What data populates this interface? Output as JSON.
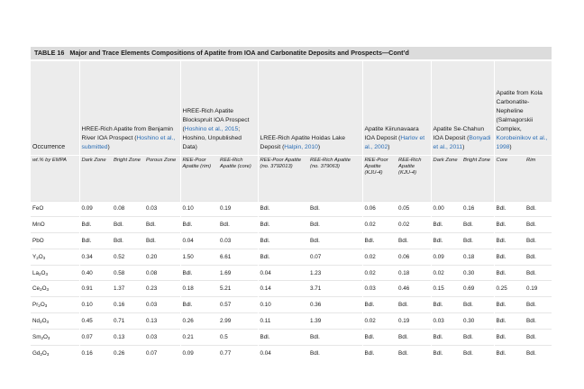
{
  "caption": {
    "label": "TABLE 16",
    "text": "Major and Trace Elements Compositions of Apatite from IOA and Carbonatite Deposits and Prospects—Cont’d"
  },
  "header": {
    "occurrence": "Occurrence",
    "groups": [
      {
        "title": "HREE-Rich Apatite from Benjamin River IOA Prospect (",
        "citation": "Hoshino et al., submitted",
        "suffix": ")"
      },
      {
        "title": "HREE-Rich Apatite Blockspruit IOA Prospect (",
        "citation": "Hoshino et al., 2015",
        "suffix": "; Hoshino, Unpublished Data)"
      },
      {
        "title": "LREE-Rich Apatite Hoidas Lake Deposit (",
        "citation": "Halpin, 2010",
        "suffix": ")"
      },
      {
        "title": "Apatite Kiirunavaara IOA Deposit (",
        "citation": "Harlov et al., 2002",
        "suffix": ")"
      },
      {
        "title": "Apatite Se-Chahun IOA Deposit (",
        "citation": "Bonyadi et al., 2011",
        "suffix": ")"
      },
      {
        "title": "Apatite from Kola Carbonatite-Nepheline (Salmagorskii Complex, ",
        "citation": "Korobeinikov et al., 1998",
        "suffix": ")"
      }
    ],
    "unit": "wt.% by EMPA",
    "columns": [
      "Dark Zone",
      "Bright Zone",
      "Porous Zone",
      "REE-Poor Apatite (rim)",
      "REE-Rich Apatite (core)",
      "REE-Poor Apatite (no. 3792013)",
      "REE-Rich Apatite (no. 379063)",
      "REE-Poor Apatite (KJU-4)",
      "REE-Rich Apatite (KJU-4)",
      "Dark Zone",
      "Bright Zone",
      "Core",
      "Rim"
    ]
  },
  "rows": [
    {
      "el": "FeO",
      "sub": "",
      "post": "",
      "values": [
        "0.09",
        "0.08",
        "0.03",
        "0.10",
        "0.19",
        "Bdl.",
        "Bdl.",
        "0.06",
        "0.05",
        "0.00",
        "0.16",
        "Bdl.",
        "Bdl."
      ]
    },
    {
      "el": "MnO",
      "sub": "",
      "post": "",
      "values": [
        "Bdl.",
        "Bdl.",
        "Bdl.",
        "Bdl.",
        "Bdl.",
        "Bdl.",
        "Bdl.",
        "0.02",
        "0.02",
        "Bdl.",
        "Bdl.",
        "Bdl.",
        "Bdl."
      ]
    },
    {
      "el": "PbO",
      "sub": "",
      "post": "",
      "values": [
        "Bdl.",
        "Bdl.",
        "Bdl.",
        "0.04",
        "0.03",
        "Bdl.",
        "Bdl.",
        "Bdl.",
        "Bdl.",
        "Bdl.",
        "Bdl.",
        "Bdl.",
        "Bdl."
      ]
    },
    {
      "el": "Y",
      "sub": "2",
      "post": "O3",
      "values": [
        "0.34",
        "0.52",
        "0.20",
        "1.50",
        "6.61",
        "Bdl.",
        "0.07",
        "0.02",
        "0.06",
        "0.09",
        "0.18",
        "Bdl.",
        "Bdl."
      ]
    },
    {
      "el": "La",
      "sub": "2",
      "post": "O3",
      "values": [
        "0.40",
        "0.58",
        "0.08",
        "Bdl.",
        "1.69",
        "0.04",
        "1.23",
        "0.02",
        "0.18",
        "0.02",
        "0.30",
        "Bdl.",
        "Bdl."
      ]
    },
    {
      "el": "Ce",
      "sub": "2",
      "post": "O3",
      "values": [
        "0.91",
        "1.37",
        "0.23",
        "0.18",
        "5.21",
        "0.14",
        "3.71",
        "0.03",
        "0.46",
        "0.15",
        "0.69",
        "0.25",
        "0.19"
      ]
    },
    {
      "el": "Pr",
      "sub": "2",
      "post": "O3",
      "values": [
        "0.10",
        "0.16",
        "0.03",
        "Bdl.",
        "0.57",
        "0.10",
        "0.36",
        "Bdl.",
        "Bdl.",
        "Bdl.",
        "Bdl.",
        "Bdl.",
        "Bdl."
      ]
    },
    {
      "el": "Nd",
      "sub": "2",
      "post": "O3",
      "values": [
        "0.45",
        "0.71",
        "0.13",
        "0.26",
        "2.99",
        "0.11",
        "1.39",
        "0.02",
        "0.19",
        "0.03",
        "0.30",
        "Bdl.",
        "Bdl."
      ]
    },
    {
      "el": "Sm",
      "sub": "2",
      "post": "O3",
      "values": [
        "0.07",
        "0.13",
        "0.03",
        "0.21",
        "0.5",
        "Bdl.",
        "Bdl.",
        "Bdl.",
        "Bdl.",
        "Bdl.",
        "Bdl.",
        "Bdl.",
        "Bdl."
      ]
    },
    {
      "el": "Gd",
      "sub": "2",
      "post": "O3",
      "values": [
        "0.16",
        "0.26",
        "0.07",
        "0.09",
        "0.77",
        "0.04",
        "Bdl.",
        "Bdl.",
        "Bdl.",
        "Bdl.",
        "Bdl.",
        "Bdl.",
        "Bdl."
      ]
    }
  ]
}
